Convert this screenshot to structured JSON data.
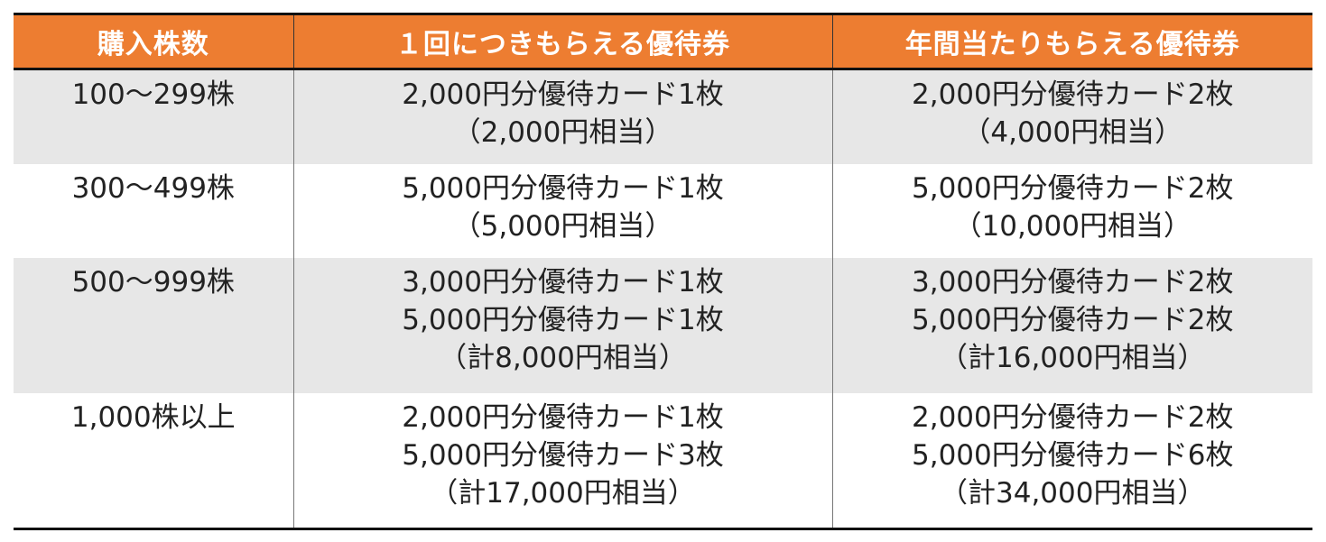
{
  "headers": [
    "購入株数",
    "１回につきもらえる優待券",
    "年間当たりもらえる優待券"
  ],
  "rows": [
    {
      "shares": "100～299株",
      "per_time": [
        "2,000円分優待カード1枚",
        "（2,000円相当）"
      ],
      "annual": [
        "2,000円分優待カード2枚",
        "（4,000円相当）"
      ]
    },
    {
      "shares": "300～499株",
      "per_time": [
        "5,000円分優待カード1枚",
        "（5,000円相当）"
      ],
      "annual": [
        "5,000円分優待カード2枚",
        "（10,000円相当）"
      ]
    },
    {
      "shares": "500～999株",
      "per_time": [
        "3,000円分優待カード1枚",
        "5,000円分優待カード1枚",
        "（計8,000円相当）"
      ],
      "annual": [
        "3,000円分優待カード2枚",
        "5,000円分優待カード2枚",
        "（計16,000円相当）"
      ]
    },
    {
      "shares": "1,000株以上",
      "per_time": [
        "2,000円分優待カード1枚",
        "5,000円分優待カード3枚",
        "（計17,000円相当）"
      ],
      "annual": [
        "2,000円分優待カード2枚",
        "5,000円分優待カード6枚",
        "（計34,000円相当）"
      ]
    }
  ],
  "colors": {
    "header_bg": "#ed7d31",
    "header_text": "#ffffff",
    "shaded_row": "#e7e7e7"
  }
}
